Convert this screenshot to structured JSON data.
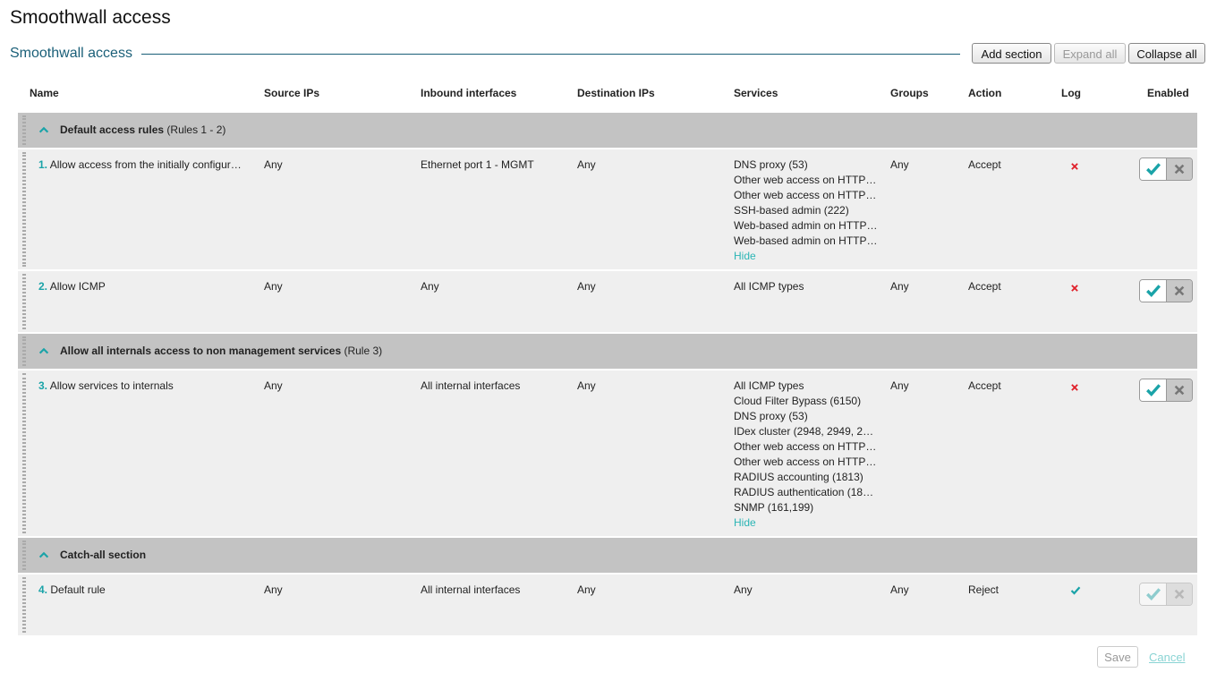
{
  "page_title": "Smoothwall access",
  "section_title": "Smoothwall access",
  "buttons": {
    "add_section": "Add section",
    "expand_all": "Expand all",
    "collapse_all": "Collapse all"
  },
  "table": {
    "headers": [
      "Name",
      "Source IPs",
      "Inbound interfaces",
      "Destination IPs",
      "Services",
      "Groups",
      "Action",
      "Log",
      "Enabled"
    ],
    "sections": [
      {
        "title": "Default access rules",
        "range": "(Rules 1 - 2)",
        "rules": [
          {
            "number": "1.",
            "name": "Allow access from the initially configur…",
            "source": "Any",
            "inbound": "Ethernet port 1 - MGMT",
            "destination": "Any",
            "services": [
              "DNS proxy (53)",
              "Other web access on HTTP…",
              "Other web access on HTTP…",
              "SSH-based admin (222)",
              "Web-based admin on HTTP…",
              "Web-based admin on HTTP…"
            ],
            "toggle": "Hide",
            "groups": "Any",
            "action": "Accept",
            "log": false,
            "enabled": true,
            "locked": false
          },
          {
            "number": "2.",
            "name": "Allow ICMP",
            "source": "Any",
            "inbound": "Any",
            "destination": "Any",
            "services": [
              "All ICMP types"
            ],
            "groups": "Any",
            "action": "Accept",
            "log": false,
            "enabled": true,
            "locked": false
          }
        ]
      },
      {
        "title": "Allow all internals access to non management services",
        "range": "(Rule 3)",
        "rules": [
          {
            "number": "3.",
            "name": "Allow services to internals",
            "source": "Any",
            "inbound": "All internal interfaces",
            "destination": "Any",
            "services": [
              "All ICMP types",
              "Cloud Filter Bypass (6150)",
              "DNS proxy (53)",
              "IDex cluster (2948, 2949, 2…",
              "Other web access on HTTP…",
              "Other web access on HTTP…",
              "RADIUS accounting (1813)",
              "RADIUS authentication (18…",
              "SNMP (161,199)"
            ],
            "toggle": "Hide",
            "groups": "Any",
            "action": "Accept",
            "log": false,
            "enabled": true,
            "locked": false
          }
        ]
      },
      {
        "title": "Catch-all section",
        "rules": [
          {
            "number": "4.",
            "name": "Default rule",
            "source": "Any",
            "inbound": "All internal interfaces",
            "destination": "Any",
            "services": [
              "Any"
            ],
            "groups": "Any",
            "action": "Reject",
            "log": true,
            "enabled": true,
            "locked": true
          }
        ]
      }
    ]
  },
  "footer": {
    "save": "Save",
    "cancel": "Cancel"
  }
}
